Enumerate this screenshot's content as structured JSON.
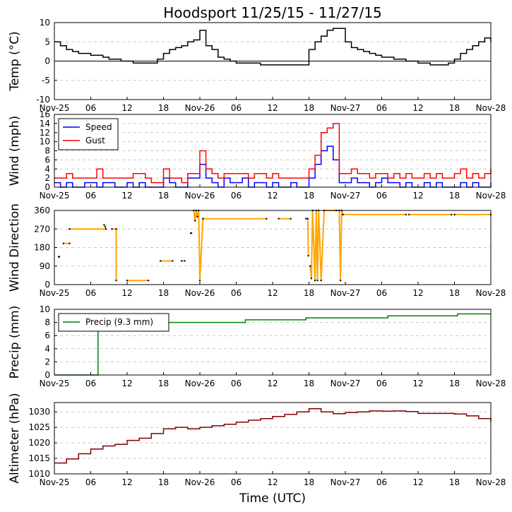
{
  "chart_data": {
    "title": "Hoodsport 11/25/15 - 11/27/15",
    "xlabel": "Time (UTC)",
    "x_unit": "hours since Nov-25 00 UTC",
    "xlim": [
      0,
      72
    ],
    "x_ticks": [
      {
        "x": 0,
        "label": "Nov-25"
      },
      {
        "x": 6,
        "label": "06"
      },
      {
        "x": 12,
        "label": "12"
      },
      {
        "x": 18,
        "label": "18"
      },
      {
        "x": 24,
        "label": "Nov-26"
      },
      {
        "x": 30,
        "label": "06"
      },
      {
        "x": 36,
        "label": "12"
      },
      {
        "x": 42,
        "label": "18"
      },
      {
        "x": 48,
        "label": "Nov-27"
      },
      {
        "x": 54,
        "label": "06"
      },
      {
        "x": 60,
        "label": "12"
      },
      {
        "x": 66,
        "label": "18"
      },
      {
        "x": 72,
        "label": "Nov-28"
      }
    ],
    "panels": [
      {
        "id": "temp",
        "type": "line",
        "ylabel": "Temp (°C)",
        "ylim": [
          -10,
          10
        ],
        "yticks": [
          -10,
          -5,
          0,
          5,
          10
        ],
        "grid": true,
        "zero_line": true,
        "series": [
          {
            "name": "Temp",
            "color": "#000000",
            "step": true,
            "x": [
              0,
              1,
              2,
              3,
              4,
              6,
              8,
              9,
              10,
              11,
              12,
              13,
              14,
              15,
              17,
              18,
              19,
              20,
              21,
              22,
              23,
              24,
              25,
              26,
              27,
              28,
              29,
              30,
              31,
              32,
              34,
              36,
              38,
              40,
              41,
              42,
              43,
              44,
              45,
              46,
              47,
              48,
              49,
              50,
              51,
              52,
              53,
              54,
              56,
              58,
              60,
              62,
              64,
              65,
              66,
              67,
              68,
              69,
              70,
              71,
              72
            ],
            "y": [
              5,
              4,
              3,
              2.5,
              2,
              1.5,
              1,
              0.5,
              0.5,
              0,
              0,
              -0.5,
              -0.5,
              -0.5,
              0.5,
              2,
              3,
              3.5,
              4,
              5,
              5.5,
              8,
              4,
              3,
              1,
              0.5,
              0,
              -0.5,
              -0.5,
              -0.5,
              -1,
              -1,
              -1,
              -1,
              -1,
              3,
              5,
              6.5,
              8,
              8.5,
              8.5,
              5,
              3.5,
              3,
              2.5,
              2,
              1.5,
              1,
              0.5,
              0,
              -0.5,
              -1,
              -1,
              -0.5,
              0.5,
              2,
              3,
              4,
              5,
              6,
              5
            ]
          }
        ]
      },
      {
        "id": "wind",
        "type": "line",
        "ylabel": "Wind (mph)",
        "ylim": [
          0,
          16
        ],
        "yticks": [
          0,
          2,
          4,
          6,
          8,
          10,
          12,
          14,
          16
        ],
        "grid": true,
        "legend": {
          "position": "top-left",
          "entries": [
            {
              "label": "Speed",
              "color": "#0000ff"
            },
            {
              "label": "Gust",
              "color": "#ff0000"
            }
          ]
        },
        "series": [
          {
            "name": "Speed",
            "color": "#0000ff",
            "step": true,
            "x": [
              0,
              1,
              2,
              3,
              4,
              5,
              6,
              7,
              8,
              9,
              10,
              11,
              12,
              13,
              14,
              15,
              16,
              17,
              18,
              19,
              20,
              21,
              22,
              23,
              24,
              25,
              26,
              27,
              28,
              29,
              30,
              31,
              32,
              33,
              34,
              35,
              36,
              37,
              38,
              39,
              40,
              41,
              42,
              43,
              44,
              45,
              46,
              47,
              48,
              49,
              50,
              51,
              52,
              53,
              54,
              55,
              56,
              57,
              58,
              59,
              60,
              61,
              62,
              63,
              64,
              65,
              66,
              67,
              68,
              69,
              70,
              71,
              72
            ],
            "y": [
              1,
              0,
              1,
              0,
              0,
              1,
              1,
              0,
              1,
              1,
              0,
              0,
              1,
              0,
              1,
              0,
              0,
              0,
              2,
              1,
              0,
              0,
              2,
              2,
              5,
              2,
              1,
              0,
              2,
              1,
              1,
              2,
              0,
              1,
              1,
              0,
              1,
              0,
              0,
              1,
              0,
              0,
              2,
              5,
              8,
              9,
              6,
              1,
              1,
              2,
              1,
              1,
              0,
              1,
              2,
              1,
              1,
              0,
              1,
              0,
              0,
              1,
              0,
              1,
              0,
              0,
              0,
              1,
              0,
              1,
              0,
              0,
              1
            ]
          },
          {
            "name": "Gust",
            "color": "#ff0000",
            "step": true,
            "x": [
              0,
              1,
              2,
              3,
              4,
              5,
              6,
              7,
              8,
              9,
              10,
              11,
              12,
              13,
              14,
              15,
              16,
              17,
              18,
              19,
              20,
              21,
              22,
              23,
              24,
              25,
              26,
              27,
              28,
              29,
              30,
              31,
              32,
              33,
              34,
              35,
              36,
              37,
              38,
              39,
              40,
              41,
              42,
              43,
              44,
              45,
              46,
              47,
              48,
              49,
              50,
              51,
              52,
              53,
              54,
              55,
              56,
              57,
              58,
              59,
              60,
              61,
              62,
              63,
              64,
              65,
              66,
              67,
              68,
              69,
              70,
              71,
              72
            ],
            "y": [
              2,
              2,
              3,
              2,
              2,
              2,
              2,
              4,
              2,
              2,
              2,
              2,
              2,
              3,
              3,
              2,
              1,
              1,
              4,
              2,
              2,
              1,
              3,
              3,
              8,
              4,
              3,
              2,
              3,
              3,
              3,
              3,
              2,
              3,
              3,
              2,
              3,
              2,
              2,
              2,
              2,
              2,
              4,
              7,
              12,
              13,
              14,
              3,
              3,
              4,
              3,
              3,
              2,
              3,
              3,
              2,
              3,
              2,
              3,
              2,
              2,
              3,
              2,
              3,
              2,
              2,
              3,
              4,
              2,
              3,
              2,
              3,
              4
            ]
          }
        ]
      },
      {
        "id": "direction",
        "type": "scatter",
        "ylabel": "Wind Direction",
        "ylim": [
          0,
          360
        ],
        "yticks": [
          0,
          90,
          180,
          270,
          360
        ],
        "grid": true,
        "series": [
          {
            "name": "Direction",
            "color": "#ffa500",
            "marker_color": "#000000",
            "segments": [
              {
                "x": [
                  0.7,
                  0.8
                ],
                "y": [
                  135,
                  135
                ]
              },
              {
                "x": [
                  1.5,
                  2.5
                ],
                "y": [
                  200,
                  200
                ]
              },
              {
                "x": [
                  2.5,
                  8.5
                ],
                "y": [
                  270,
                  270
                ]
              },
              {
                "x": [
                  8.2,
                  8.4
                ],
                "y": [
                  290,
                  280
                ]
              },
              {
                "x": [
                  9.5,
                  10.2,
                  10.2
                ],
                "y": [
                  270,
                  270,
                  20
                ]
              },
              {
                "x": [
                  12,
                  15.5
                ],
                "y": [
                  20,
                  20
                ]
              },
              {
                "x": [
                  17.5,
                  19.5
                ],
                "y": [
                  115,
                  115
                ]
              },
              {
                "x": [
                  21,
                  21.5
                ],
                "y": [
                  115,
                  115
                ]
              },
              {
                "x": [
                  22.5,
                  22.6
                ],
                "y": [
                  250,
                  250
                ]
              },
              {
                "x": [
                  23,
                  23.2,
                  23.4,
                  23.6,
                  23.8,
                  24,
                  24.5
                ],
                "y": [
                  360,
                  310,
                  360,
                  330,
                  360,
                  20,
                  320
                ]
              },
              {
                "x": [
                  24.5,
                  35
                ],
                "y": [
                  320,
                  320
                ]
              },
              {
                "x": [
                  37,
                  39
                ],
                "y": [
                  320,
                  320
                ]
              },
              {
                "x": [
                  41.5,
                  41.8,
                  41.9
                ],
                "y": [
                  320,
                  320,
                  140
                ]
              },
              {
                "x": [
                  42.2,
                  42.4,
                  42.6
                ],
                "y": [
                  90,
                  30,
                  360
                ]
              },
              {
                "x": [
                  42.6,
                  43,
                  43.2,
                  43.4,
                  43.6,
                  44,
                  44.5,
                  46.5,
                  47,
                  47.2,
                  47.4,
                  47.6
                ],
                "y": [
                  360,
                  20,
                  360,
                  20,
                  360,
                  20,
                  360,
                  360,
                  360,
                  20,
                  360,
                  340
                ]
              },
              {
                "x": [
                  47.6,
                  58
                ],
                "y": [
                  340,
                  340
                ]
              },
              {
                "x": [
                  58.5,
                  65.5
                ],
                "y": [
                  340,
                  340
                ]
              },
              {
                "x": [
                  66,
                  72
                ],
                "y": [
                  340,
                  340
                ]
              }
            ]
          }
        ]
      },
      {
        "id": "precip",
        "type": "line",
        "ylabel": "Precip (mm)",
        "ylim": [
          0,
          10
        ],
        "yticks": [
          0,
          2,
          4,
          6,
          8,
          10
        ],
        "grid": true,
        "legend": {
          "position": "top-left",
          "entries": [
            {
              "label": "Precip (9.3 mm)",
              "color": "#008000"
            }
          ]
        },
        "series": [
          {
            "name": "Precip (9.3 mm)",
            "color": "#008000",
            "step": true,
            "x": [
              0,
              7,
              7.2,
              9.5,
              16.5,
              31.5,
              41.5,
              55,
              66.5,
              72
            ],
            "y": [
              0,
              0,
              7.5,
              7.8,
              8.0,
              8.4,
              8.7,
              9.0,
              9.3,
              9.3
            ]
          }
        ]
      },
      {
        "id": "altimeter",
        "type": "line",
        "ylabel": "Altimeter (hPa)",
        "ylim": [
          1010,
          1033
        ],
        "yticks": [
          1010,
          1015,
          1020,
          1025,
          1030
        ],
        "grid": true,
        "series": [
          {
            "name": "Altimeter",
            "color": "#800000",
            "step": true,
            "x": [
              0,
              2,
              4,
              6,
              8,
              10,
              12,
              14,
              16,
              18,
              20,
              22,
              24,
              26,
              28,
              30,
              32,
              34,
              36,
              38,
              40,
              42,
              44,
              46,
              48,
              50,
              52,
              54,
              56,
              58,
              60,
              62,
              64,
              66,
              68,
              70,
              72
            ],
            "y": [
              1013.5,
              1014.8,
              1016.5,
              1018,
              1019,
              1019.5,
              1020.8,
              1021.5,
              1023,
              1024.5,
              1025,
              1024.5,
              1025,
              1025.5,
              1026,
              1026.7,
              1027.3,
              1027.8,
              1028.5,
              1029.2,
              1030,
              1031,
              1030,
              1029.4,
              1029.8,
              1030,
              1030.3,
              1030.2,
              1030.3,
              1030.1,
              1029.5,
              1029.5,
              1029.5,
              1029.3,
              1028.7,
              1027.8,
              1026.8
            ]
          }
        ]
      }
    ]
  }
}
